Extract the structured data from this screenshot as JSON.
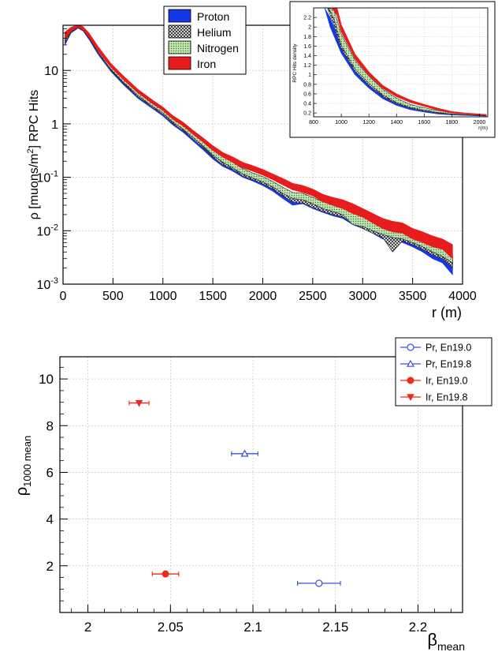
{
  "charts": [
    {
      "type": "line",
      "ylabel_main": "ρ [muons/m",
      "ylabel_sup": "2",
      "ylabel_tail": "] RPC Hits",
      "xlabel": "r (m)",
      "xlim": [
        0,
        4000
      ],
      "ylim": [
        0.001,
        70
      ],
      "yscale": "log",
      "grid": true,
      "xticks": [
        0,
        500,
        1000,
        1500,
        2000,
        2500,
        3000,
        3500,
        4000
      ],
      "yticks": [
        {
          "value": 0.001,
          "base": "10",
          "exp": "-3"
        },
        {
          "value": 0.01,
          "base": "10",
          "exp": "-2"
        },
        {
          "value": 0.1,
          "base": "10",
          "exp": "-1"
        },
        {
          "value": 1,
          "base": "1",
          "exp": ""
        },
        {
          "value": 10,
          "base": "10",
          "exp": ""
        }
      ],
      "legend_position": "top-center",
      "series": [
        {
          "name": "Proton",
          "color": "#1538e6",
          "fill": "solid",
          "x": [
            20,
            80,
            150,
            200,
            260,
            350,
            480,
            600,
            750,
            900,
            1000,
            1100,
            1200,
            1300,
            1400,
            1500,
            1600,
            1700,
            1800,
            1900,
            2000,
            2100,
            2200,
            2300,
            2400,
            2500,
            2600,
            2700,
            2800,
            2900,
            3000,
            3100,
            3200,
            3300,
            3400,
            3500,
            3600,
            3700,
            3800,
            3900
          ],
          "lo": [
            30,
            50,
            62,
            55,
            38,
            20,
            9.5,
            5.5,
            3.0,
            1.9,
            1.4,
            0.95,
            0.7,
            0.48,
            0.33,
            0.22,
            0.16,
            0.13,
            0.1,
            0.085,
            0.07,
            0.055,
            0.04,
            0.03,
            0.032,
            0.026,
            0.022,
            0.019,
            0.017,
            0.013,
            0.011,
            0.009,
            0.007,
            0.0065,
            0.006,
            0.005,
            0.004,
            0.003,
            0.0025,
            0.0015
          ],
          "hi": [
            45,
            60,
            68,
            62,
            45,
            24,
            11,
            6.5,
            3.5,
            2.2,
            1.6,
            1.1,
            0.82,
            0.56,
            0.39,
            0.27,
            0.2,
            0.16,
            0.12,
            0.1,
            0.085,
            0.067,
            0.05,
            0.04,
            0.04,
            0.033,
            0.028,
            0.024,
            0.021,
            0.017,
            0.014,
            0.012,
            0.0095,
            0.0085,
            0.008,
            0.007,
            0.0055,
            0.0045,
            0.0035,
            0.0025
          ]
        },
        {
          "name": "Helium",
          "color": "#333333",
          "fill": "hatch",
          "x": [
            20,
            80,
            150,
            200,
            260,
            350,
            480,
            600,
            750,
            900,
            1000,
            1100,
            1200,
            1300,
            1400,
            1500,
            1600,
            1700,
            1800,
            1900,
            2000,
            2100,
            2200,
            2300,
            2400,
            2500,
            2600,
            2700,
            2800,
            2900,
            3000,
            3100,
            3200,
            3300,
            3400,
            3500,
            3600,
            3700,
            3800,
            3900
          ],
          "lo": [
            33,
            52,
            63,
            56,
            40,
            21,
            10,
            5.8,
            3.2,
            2.0,
            1.5,
            1.0,
            0.75,
            0.52,
            0.36,
            0.24,
            0.17,
            0.14,
            0.105,
            0.09,
            0.075,
            0.06,
            0.045,
            0.034,
            0.033,
            0.027,
            0.023,
            0.02,
            0.018,
            0.014,
            0.011,
            0.009,
            0.0075,
            0.004,
            0.0065,
            0.0055,
            0.0045,
            0.0035,
            0.003,
            0.002
          ],
          "hi": [
            48,
            62,
            69,
            64,
            47,
            26,
            12,
            7.0,
            3.8,
            2.4,
            1.75,
            1.2,
            0.88,
            0.6,
            0.42,
            0.29,
            0.22,
            0.17,
            0.135,
            0.11,
            0.095,
            0.075,
            0.058,
            0.045,
            0.044,
            0.037,
            0.031,
            0.026,
            0.023,
            0.019,
            0.016,
            0.013,
            0.011,
            0.0095,
            0.009,
            0.0078,
            0.0065,
            0.005,
            0.004,
            0.003
          ]
        },
        {
          "name": "Nitrogen",
          "color": "#3d8f3d",
          "fill": "dots",
          "x": [
            20,
            80,
            150,
            200,
            260,
            350,
            480,
            600,
            750,
            900,
            1000,
            1100,
            1200,
            1300,
            1400,
            1500,
            1600,
            1700,
            1800,
            1900,
            2000,
            2100,
            2200,
            2300,
            2400,
            2500,
            2600,
            2700,
            2800,
            2900,
            3000,
            3100,
            3200,
            3300,
            3400,
            3500,
            3600,
            3700,
            3800,
            3900
          ],
          "lo": [
            36,
            54,
            64,
            57,
            41,
            22,
            10.5,
            6.1,
            3.4,
            2.1,
            1.6,
            1.08,
            0.8,
            0.56,
            0.39,
            0.26,
            0.19,
            0.15,
            0.115,
            0.097,
            0.082,
            0.066,
            0.05,
            0.04,
            0.038,
            0.032,
            0.026,
            0.023,
            0.02,
            0.013,
            0.012,
            0.01,
            0.0085,
            0.0075,
            0.007,
            0.006,
            0.005,
            0.004,
            0.0033,
            0.0025
          ],
          "hi": [
            50,
            63,
            70,
            65,
            48,
            27,
            12.5,
            7.3,
            4.0,
            2.5,
            1.85,
            1.28,
            0.95,
            0.66,
            0.46,
            0.32,
            0.24,
            0.19,
            0.145,
            0.12,
            0.103,
            0.083,
            0.065,
            0.052,
            0.05,
            0.042,
            0.035,
            0.03,
            0.026,
            0.022,
            0.018,
            0.015,
            0.0125,
            0.011,
            0.0105,
            0.009,
            0.0075,
            0.006,
            0.005,
            0.0038
          ]
        },
        {
          "name": "Iron",
          "color": "#e81c1c",
          "fill": "solid",
          "x": [
            20,
            80,
            150,
            200,
            260,
            350,
            480,
            600,
            750,
            900,
            1000,
            1100,
            1200,
            1300,
            1400,
            1500,
            1600,
            1700,
            1800,
            1900,
            2000,
            2100,
            2200,
            2300,
            2400,
            2500,
            2600,
            2700,
            2800,
            2900,
            3000,
            3100,
            3200,
            3300,
            3400,
            3500,
            3600,
            3700,
            3800,
            3900
          ],
          "lo": [
            38,
            55,
            65,
            58,
            42,
            23,
            11.5,
            6.8,
            3.8,
            2.35,
            1.78,
            1.22,
            0.92,
            0.64,
            0.46,
            0.32,
            0.24,
            0.19,
            0.15,
            0.13,
            0.11,
            0.09,
            0.072,
            0.058,
            0.052,
            0.045,
            0.035,
            0.03,
            0.026,
            0.021,
            0.018,
            0.014,
            0.011,
            0.0095,
            0.009,
            0.007,
            0.006,
            0.005,
            0.0045,
            0.003
          ],
          "hi": [
            52,
            64,
            71,
            66,
            50,
            28,
            13.5,
            8.0,
            4.4,
            2.75,
            2.05,
            1.42,
            1.08,
            0.76,
            0.55,
            0.39,
            0.29,
            0.24,
            0.19,
            0.165,
            0.14,
            0.115,
            0.095,
            0.077,
            0.07,
            0.06,
            0.048,
            0.042,
            0.038,
            0.032,
            0.026,
            0.021,
            0.017,
            0.015,
            0.014,
            0.011,
            0.0095,
            0.008,
            0.007,
            0.0055
          ]
        }
      ]
    },
    {
      "type": "line",
      "ylabel": "RPC Hits density",
      "xlabel": "r(m)",
      "xlim": [
        800,
        2060
      ],
      "ylim": [
        0.12,
        2.4
      ],
      "grid": true,
      "xticks": [
        800,
        1000,
        1200,
        1400,
        1600,
        1800,
        2000
      ],
      "yticks": [
        0.2,
        0.4,
        0.6,
        0.8,
        1,
        1.2,
        1.4,
        1.6,
        1.8,
        2,
        2.2
      ],
      "series": [
        {
          "name": "Proton",
          "color": "#1538e6",
          "fill": "solid",
          "x": [
            880,
            920,
            1000,
            1100,
            1200,
            1300,
            1400,
            1500,
            1600,
            1700,
            1800,
            1900,
            2000,
            2050
          ],
          "lo": [
            2.4,
            2.0,
            1.45,
            1.0,
            0.72,
            0.5,
            0.36,
            0.27,
            0.22,
            0.18,
            0.16,
            0.15,
            0.14,
            0.135
          ],
          "hi": [
            2.4,
            2.2,
            1.6,
            1.12,
            0.82,
            0.58,
            0.42,
            0.31,
            0.26,
            0.21,
            0.18,
            0.17,
            0.155,
            0.15
          ]
        },
        {
          "name": "Helium",
          "color": "#333333",
          "fill": "hatch",
          "x": [
            900,
            940,
            1000,
            1100,
            1200,
            1300,
            1400,
            1500,
            1600,
            1700,
            1800,
            1900,
            2000,
            2050
          ],
          "lo": [
            2.4,
            2.1,
            1.55,
            1.07,
            0.78,
            0.55,
            0.4,
            0.3,
            0.24,
            0.2,
            0.17,
            0.16,
            0.15,
            0.14
          ],
          "hi": [
            2.4,
            2.3,
            1.78,
            1.25,
            0.92,
            0.66,
            0.48,
            0.36,
            0.29,
            0.24,
            0.2,
            0.18,
            0.165,
            0.16
          ]
        },
        {
          "name": "Nitrogen",
          "color": "#3d8f3d",
          "fill": "dots",
          "x": [
            910,
            950,
            1000,
            1100,
            1200,
            1300,
            1400,
            1500,
            1600,
            1700,
            1800,
            1900,
            2000,
            2050
          ],
          "lo": [
            2.4,
            2.15,
            1.62,
            1.12,
            0.82,
            0.58,
            0.42,
            0.32,
            0.26,
            0.21,
            0.18,
            0.165,
            0.155,
            0.145
          ],
          "hi": [
            2.4,
            2.35,
            1.85,
            1.3,
            0.97,
            0.7,
            0.51,
            0.38,
            0.31,
            0.25,
            0.21,
            0.19,
            0.17,
            0.165
          ]
        },
        {
          "name": "Iron",
          "color": "#e81c1c",
          "fill": "solid",
          "x": [
            930,
            970,
            1000,
            1100,
            1200,
            1300,
            1400,
            1500,
            1600,
            1700,
            1800,
            1900,
            2000,
            2050
          ],
          "lo": [
            2.4,
            2.25,
            1.9,
            1.33,
            0.98,
            0.72,
            0.54,
            0.42,
            0.34,
            0.26,
            0.2,
            0.18,
            0.165,
            0.155
          ],
          "hi": [
            2.4,
            2.4,
            2.05,
            1.43,
            1.06,
            0.78,
            0.6,
            0.47,
            0.38,
            0.3,
            0.23,
            0.2,
            0.18,
            0.17
          ]
        }
      ]
    },
    {
      "type": "scatter",
      "ylabel_main": "ρ",
      "ylabel_sub": "1000 mean",
      "xlabel_main": "β",
      "xlabel_sub": "mean",
      "xlim": [
        1.983,
        2.227
      ],
      "ylim": [
        0,
        10.95
      ],
      "grid": true,
      "xticks": [
        {
          "value": 2,
          "label": "2"
        },
        {
          "value": 2.05,
          "label": "2.05"
        },
        {
          "value": 2.1,
          "label": "2.1"
        },
        {
          "value": 2.15,
          "label": "2.15"
        },
        {
          "value": 2.2,
          "label": "2.2"
        }
      ],
      "yticks": [
        {
          "value": 2,
          "label": "2"
        },
        {
          "value": 4,
          "label": "4"
        },
        {
          "value": 6,
          "label": "6"
        },
        {
          "value": 8,
          "label": "8"
        },
        {
          "value": 10,
          "label": "10"
        }
      ],
      "legend_position": "top-right",
      "points": [
        {
          "name": "Pr, En19.0",
          "color": "#3a50d8",
          "marker": "open-circle",
          "x": 2.14,
          "y": 1.25,
          "xerr": 0.013
        },
        {
          "name": "Pr, En19.8",
          "color": "#3a50d8",
          "marker": "open-triangle-up",
          "x": 2.095,
          "y": 6.8,
          "xerr": 0.008
        },
        {
          "name": "Ir, En19.0",
          "color": "#ee2a1a",
          "marker": "filled-circle",
          "x": 2.047,
          "y": 1.65,
          "xerr": 0.008
        },
        {
          "name": "Ir, En19.8",
          "color": "#ee2a1a",
          "marker": "filled-triangle-down",
          "x": 2.031,
          "y": 8.97,
          "xerr": 0.006
        }
      ]
    }
  ]
}
